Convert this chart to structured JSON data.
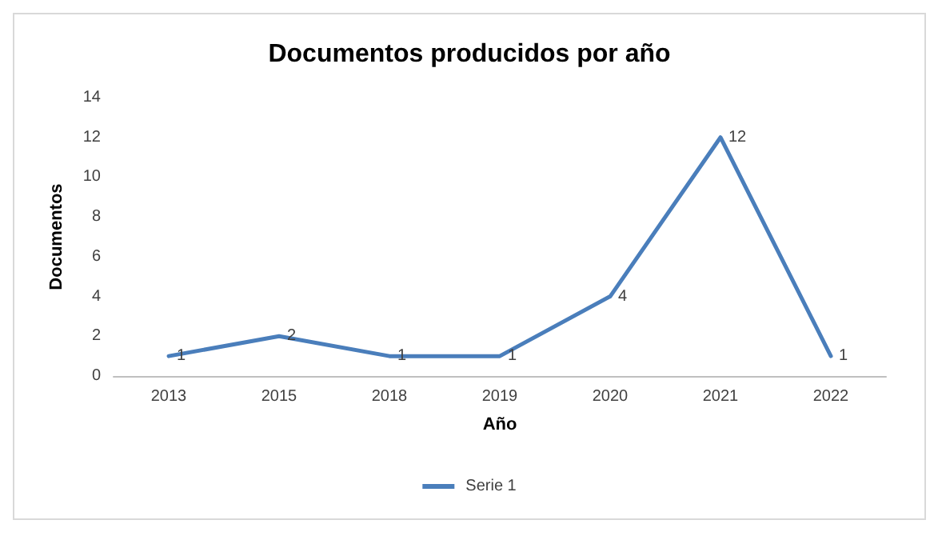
{
  "chart_data": {
    "type": "line",
    "title": "Documentos producidos por año",
    "xlabel": "Año",
    "ylabel": "Documentos",
    "categories": [
      "2013",
      "2015",
      "2018",
      "2019",
      "2020",
      "2021",
      "2022"
    ],
    "series": [
      {
        "name": "Serie 1",
        "color": "#4a7ebb",
        "values": [
          1,
          2,
          1,
          1,
          4,
          12,
          1
        ]
      }
    ],
    "ylim": [
      0,
      14
    ],
    "yticks": [
      0,
      2,
      4,
      6,
      8,
      10,
      12,
      14
    ],
    "grid": false,
    "legend": "bottom",
    "data_labels": true,
    "marker": "none",
    "line_style": "solid"
  }
}
